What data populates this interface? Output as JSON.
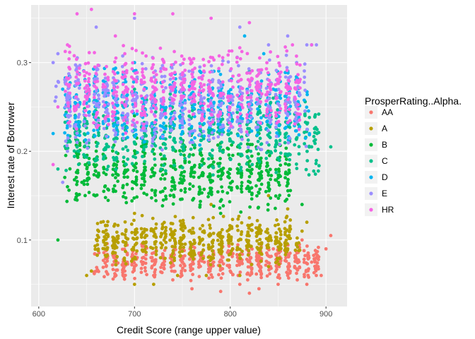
{
  "chart_data": {
    "type": "scatter",
    "xlabel": "Credit Score (range upper value)",
    "ylabel": "Interest rate of Borrower",
    "xlim": [
      592,
      922
    ],
    "ylim": [
      0.025,
      0.365
    ],
    "x_ticks": [
      {
        "value": 600,
        "label": "600"
      },
      {
        "value": 700,
        "label": "700"
      },
      {
        "value": 800,
        "label": "800"
      },
      {
        "value": 900,
        "label": "900"
      }
    ],
    "y_ticks": [
      {
        "value": 0.1,
        "label": "0.1"
      },
      {
        "value": 0.2,
        "label": "0.2"
      },
      {
        "value": 0.3,
        "label": "0.3"
      }
    ],
    "grid": true,
    "legend": {
      "title": "ProsperRating..Alpha.",
      "placement": "right"
    },
    "series": [
      {
        "name": "AA",
        "color": "#F8766D",
        "x_range": [
          650,
          905
        ],
        "y_range": [
          0.04,
          0.11
        ],
        "points": [
          [
            790,
            0.042
          ],
          [
            810,
            0.05
          ],
          [
            830,
            0.045
          ],
          [
            850,
            0.05
          ],
          [
            870,
            0.055
          ],
          [
            880,
            0.05
          ],
          [
            895,
            0.06
          ],
          [
            905,
            0.105
          ],
          [
            900,
            0.09
          ],
          [
            885,
            0.075
          ],
          [
            760,
            0.045
          ],
          [
            740,
            0.055
          ],
          [
            720,
            0.06
          ],
          [
            700,
            0.07
          ],
          [
            680,
            0.075
          ],
          [
            820,
            0.04
          ],
          [
            860,
            0.06
          ],
          [
            890,
            0.08
          ],
          [
            875,
            0.1
          ],
          [
            845,
            0.09
          ],
          [
            800,
            0.065
          ],
          [
            780,
            0.07
          ]
        ]
      },
      {
        "name": "A",
        "color": "#B79F00",
        "x_range": [
          650,
          880
        ],
        "y_range": [
          0.05,
          0.15
        ],
        "points": [
          [
            655,
            0.065
          ],
          [
            650,
            0.06
          ],
          [
            700,
            0.05
          ],
          [
            720,
            0.05
          ],
          [
            745,
            0.06
          ],
          [
            775,
            0.06
          ],
          [
            810,
            0.06
          ],
          [
            840,
            0.07
          ],
          [
            860,
            0.09
          ],
          [
            875,
            0.11
          ],
          [
            880,
            0.12
          ],
          [
            860,
            0.135
          ],
          [
            840,
            0.15
          ],
          [
            700,
            0.13
          ],
          [
            680,
            0.1
          ],
          [
            665,
            0.12
          ],
          [
            780,
            0.14
          ],
          [
            820,
            0.125
          ]
        ]
      },
      {
        "name": "B",
        "color": "#00BA38",
        "x_range": [
          620,
          875
        ],
        "y_range": [
          0.1,
          0.25
        ],
        "points": [
          [
            620,
            0.1
          ],
          [
            640,
            0.145
          ],
          [
            630,
            0.16
          ],
          [
            645,
            0.165
          ],
          [
            860,
            0.165
          ],
          [
            875,
            0.14
          ],
          [
            850,
            0.17
          ],
          [
            840,
            0.2
          ],
          [
            830,
            0.22
          ],
          [
            820,
            0.25
          ],
          [
            700,
            0.24
          ],
          [
            660,
            0.21
          ],
          [
            760,
            0.18
          ],
          [
            790,
            0.13
          ]
        ]
      },
      {
        "name": "C",
        "color": "#00C08B",
        "x_range": [
          615,
          905
        ],
        "y_range": [
          0.14,
          0.3
        ],
        "points": [
          [
            620,
            0.18
          ],
          [
            640,
            0.21
          ],
          [
            648,
            0.24
          ],
          [
            860,
            0.195
          ],
          [
            885,
            0.205
          ],
          [
            905,
            0.205
          ],
          [
            835,
            0.24
          ],
          [
            845,
            0.26
          ],
          [
            820,
            0.29
          ],
          [
            700,
            0.27
          ],
          [
            660,
            0.25
          ],
          [
            750,
            0.22
          ]
        ]
      },
      {
        "name": "D",
        "color": "#00B4F0",
        "x_range": [
          615,
          890
        ],
        "y_range": [
          0.17,
          0.33
        ],
        "points": [
          [
            615,
            0.22
          ],
          [
            625,
            0.27
          ],
          [
            845,
            0.27
          ],
          [
            860,
            0.29
          ],
          [
            885,
            0.32
          ],
          [
            835,
            0.31
          ],
          [
            815,
            0.33
          ],
          [
            700,
            0.3
          ],
          [
            660,
            0.28
          ],
          [
            760,
            0.26
          ]
        ]
      },
      {
        "name": "E",
        "color": "#9B8EFF",
        "x_range": [
          612,
          890
        ],
        "y_range": [
          0.16,
          0.35
        ],
        "points": [
          [
            615,
            0.3
          ],
          [
            620,
            0.31
          ],
          [
            630,
            0.2
          ],
          [
            640,
            0.21
          ],
          [
            625,
            0.165
          ],
          [
            880,
            0.32
          ],
          [
            890,
            0.32
          ],
          [
            860,
            0.33
          ],
          [
            840,
            0.32
          ],
          [
            810,
            0.34
          ],
          [
            700,
            0.35
          ],
          [
            660,
            0.34
          ]
        ]
      },
      {
        "name": "HR",
        "color": "#F564E3",
        "x_range": [
          615,
          885
        ],
        "y_range": [
          0.18,
          0.36
        ],
        "points": [
          [
            615,
            0.185
          ],
          [
            620,
            0.25
          ],
          [
            630,
            0.32
          ],
          [
            640,
            0.355
          ],
          [
            655,
            0.36
          ],
          [
            700,
            0.355
          ],
          [
            740,
            0.355
          ],
          [
            780,
            0.35
          ],
          [
            820,
            0.345
          ],
          [
            865,
            0.32
          ],
          [
            885,
            0.32
          ],
          [
            760,
            0.3
          ],
          [
            680,
            0.33
          ]
        ]
      }
    ]
  }
}
